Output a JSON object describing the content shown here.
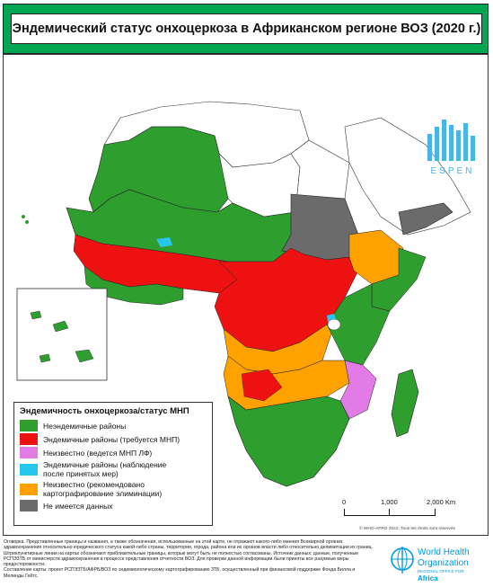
{
  "title": "Эндемический статус онхоцеркоза в Африканском регионе ВОЗ (2020 г.)",
  "legend": {
    "title": "Эндемичность онхоцеркоза/статус МНП",
    "items": [
      {
        "label": "Неэндемичные районы",
        "color": "#2e9e2e"
      },
      {
        "label": "Эндемичные районы (требуется МНП)",
        "color": "#ee1111"
      },
      {
        "label": "Неизвестно (ведется МНП ЛФ)",
        "color": "#e27be6"
      },
      {
        "label": "Эндемичные районы (наблюдение\nпосле принятых мер)",
        "color": "#27c6ee"
      },
      {
        "label": "Неизвестно (рекомендовано\nкартографирование элиминации)",
        "color": "#ffa200"
      },
      {
        "label": "Не имеется данных",
        "color": "#6b6b6b"
      }
    ]
  },
  "scale": {
    "labels": [
      "0",
      "1,000",
      "2,000 Km"
    ]
  },
  "credit": "© WHO-AFRO 2022. Tous les droits sont réservés",
  "disclaimer": {
    "line1": "Оговорка. Представленные границы и названия, а также обозначения, использованные на этой карте, не отражают какого-либо мнения Всемирной организ здравоохранения относительно юридического статуса какой-либо страны, территории, города, района или их органов власти либо относительно делимитации их границ. Штрихпунктирные линии на картах обозначают приблизительные границы, которые могут быть не полностью согласованы. Источник данных: данные, полученные РСПЭЗТБ от министерств здравоохранения в процессе представления отчетности ВОЗ. Для проверки данной информации были приняты все разумные меры предосторожности.",
    "line2": "Составление карты: проект РСПЭЗТБ/АФРБ/ВОЗ по эндемиологическому картографированию ЗТБ, осуществленный при финансовой поддержке Фонда Билла и Мелинды Гейтс."
  },
  "espen_logo": "ESPEN",
  "who": {
    "line1": "World Health",
    "line2": "Organization",
    "office": "REGIONAL OFFICE FOR",
    "region": "Africa"
  }
}
